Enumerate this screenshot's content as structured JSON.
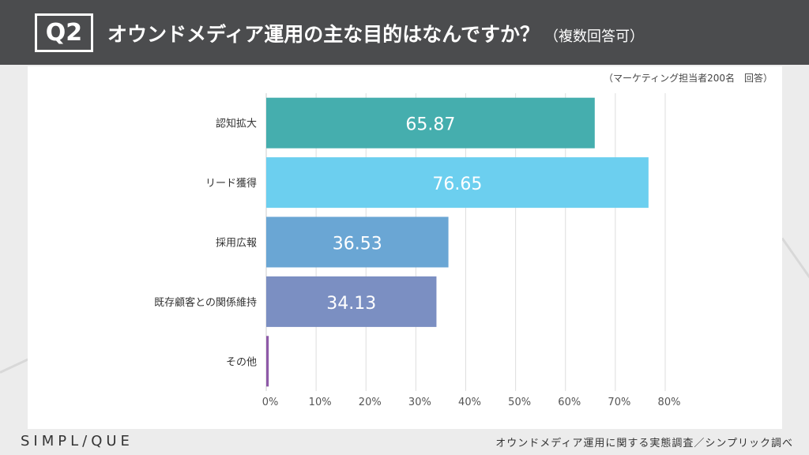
{
  "header": {
    "q_label": "Q2",
    "title": "オウンドメディア運用の主な目的はなんですか？",
    "subtitle": "（複数回答可）"
  },
  "note": "（マーケティング担当者200名　回答）",
  "footer": {
    "logo": "SIMPL/QUE",
    "source": "オウンドメディア運用に関する実態調査／シンプリック調べ"
  },
  "chart_data": {
    "type": "bar",
    "orientation": "horizontal",
    "categories": [
      "認知拡大",
      "リード獲得",
      "採用広報",
      "既存顧客との関係維持",
      "その他"
    ],
    "values": [
      65.87,
      76.65,
      36.53,
      34.13,
      0.5
    ],
    "data_labels": [
      "65.87",
      "76.65",
      "36.53",
      "34.13",
      ""
    ],
    "colors": [
      "#45aeae",
      "#6ccfef",
      "#6aa6d4",
      "#7b8fc2",
      "#8e5aa8"
    ],
    "xlim": [
      0,
      80
    ],
    "xticks": [
      "0%",
      "10%",
      "20%",
      "30%",
      "40%",
      "50%",
      "60%",
      "70%",
      "80%"
    ],
    "grid": true
  }
}
